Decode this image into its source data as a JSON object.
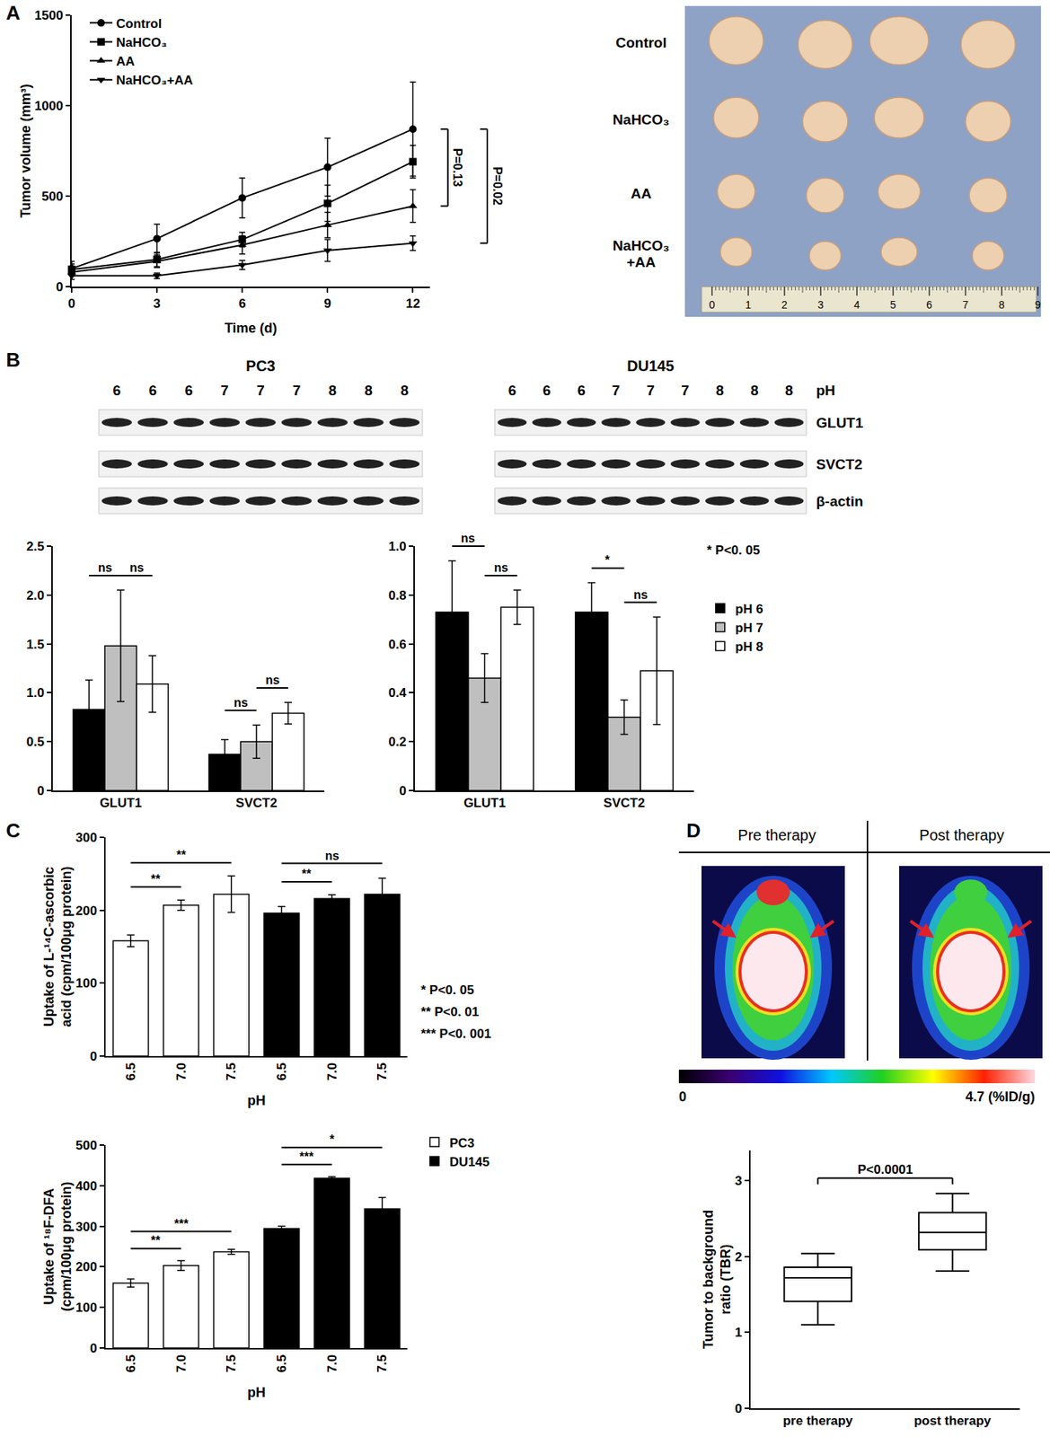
{
  "panels": [
    "A",
    "B",
    "C",
    "D"
  ],
  "photo": {
    "rows": [
      [
        "Control"
      ],
      [
        "NaHCO₃"
      ],
      [
        "AA"
      ],
      [
        "NaHCO₃",
        "+AA"
      ]
    ],
    "ruler_ticks": [
      0,
      1,
      2,
      3,
      4,
      5,
      6,
      7,
      8,
      9
    ]
  },
  "blot": {
    "lane_label": "pH",
    "proteins": [
      "GLUT1",
      "SVCT2",
      "β-actin"
    ],
    "panels": [
      {
        "cell_line": "PC3",
        "lanes": [
          6,
          6,
          6,
          7,
          7,
          7,
          8,
          8,
          8
        ]
      },
      {
        "cell_line": "DU145",
        "lanes": [
          6,
          6,
          6,
          7,
          7,
          7,
          8,
          8,
          8
        ]
      }
    ]
  },
  "pet": {
    "headers": [
      "Pre therapy",
      "Post therapy"
    ],
    "colorbar": {
      "range": [
        0,
        4.7
      ],
      "ticks": [
        {
          "value": 0,
          "label": "0"
        },
        {
          "value": 4.7,
          "label": "4.7 (%ID/g)"
        }
      ]
    }
  },
  "chart_data": [
    {
      "type": "line",
      "x": [
        0,
        3,
        6,
        9,
        12
      ],
      "xlim": [
        0,
        12.6
      ],
      "xticks": [
        0,
        3,
        6,
        9,
        12
      ],
      "ylim": [
        0,
        1500
      ],
      "yticks": [
        0,
        500,
        1000,
        1500
      ],
      "xlabel": "Time (d)",
      "ylabel": "Tumor volume (mm³)",
      "grid": false,
      "legend": "upper left",
      "series": [
        {
          "name": "Control",
          "color": "#000000",
          "marker": "circle",
          "values": [
            100,
            265,
            490,
            660,
            870
          ],
          "errors": [
            40,
            80,
            110,
            160,
            260
          ]
        },
        {
          "name": "NaHCO₃",
          "color": "#000000",
          "marker": "square",
          "values": [
            95,
            150,
            260,
            460,
            690
          ],
          "errors": [
            30,
            40,
            40,
            100,
            90
          ]
        },
        {
          "name": "AA",
          "color": "#000000",
          "marker": "triangle-up",
          "values": [
            80,
            140,
            230,
            340,
            445
          ],
          "errors": [
            20,
            35,
            50,
            70,
            90
          ]
        },
        {
          "name": "NaHCO₃+AA",
          "color": "#000000",
          "marker": "triangle-down",
          "values": [
            60,
            60,
            120,
            200,
            240
          ],
          "errors": [
            20,
            15,
            25,
            60,
            40
          ]
        }
      ],
      "comparisons": [
        {
          "from": "Control",
          "to": "AA",
          "label": "P=0.13"
        },
        {
          "from": "Control",
          "to": "NaHCO₃+AA",
          "label": "P=0.02"
        }
      ]
    },
    {
      "type": "bar",
      "categories": [
        "GLUT1",
        "SVCT2"
      ],
      "ylim": [
        0,
        2.5
      ],
      "yticks": [
        0,
        0.5,
        {
          "value": 1,
          "label": "1.0"
        },
        1.5,
        {
          "value": 2,
          "label": "2.0"
        },
        2.5
      ],
      "grid": false,
      "series": [
        {
          "name": "pH 6",
          "color": "#000000",
          "values": [
            0.83,
            0.37
          ],
          "errors": [
            0.3,
            0.15
          ]
        },
        {
          "name": "pH 7",
          "color": "#bfbfbf",
          "values": [
            1.48,
            0.5
          ],
          "errors": [
            0.57,
            0.17
          ]
        },
        {
          "name": "pH 8",
          "color": "#ffffff",
          "values": [
            1.09,
            0.79
          ],
          "errors": [
            0.29,
            0.11
          ]
        }
      ],
      "comparisons": [
        {
          "category": "GLUT1",
          "from": "pH 6",
          "to": "pH 7",
          "label": "ns"
        },
        {
          "category": "GLUT1",
          "from": "pH 7",
          "to": "pH 8",
          "label": "ns"
        },
        {
          "category": "SVCT2",
          "from": "pH 6",
          "to": "pH 7",
          "label": "ns"
        },
        {
          "category": "SVCT2",
          "from": "pH 7",
          "to": "pH 8",
          "label": "ns"
        }
      ]
    },
    {
      "type": "bar",
      "categories": [
        "GLUT1",
        "SVCT2"
      ],
      "ylim": [
        0,
        1
      ],
      "yticks": [
        0,
        0.2,
        0.4,
        0.6,
        0.8,
        {
          "value": 1,
          "label": "1.0"
        }
      ],
      "grid": false,
      "legend": "right",
      "significance_key": [
        "* P<0. 05"
      ],
      "series": [
        {
          "name": "pH 6",
          "color": "#000000",
          "values": [
            0.73,
            0.73
          ],
          "errors": [
            0.21,
            0.12
          ]
        },
        {
          "name": "pH 7",
          "color": "#bfbfbf",
          "values": [
            0.46,
            0.3
          ],
          "errors": [
            0.1,
            0.07
          ]
        },
        {
          "name": "pH 8",
          "color": "#ffffff",
          "values": [
            0.75,
            0.49
          ],
          "errors": [
            0.07,
            0.22
          ]
        }
      ],
      "comparisons": [
        {
          "category": "GLUT1",
          "from": "pH 6",
          "to": "pH 7",
          "label": "ns"
        },
        {
          "category": "GLUT1",
          "from": "pH 7",
          "to": "pH 8",
          "label": "ns"
        },
        {
          "category": "SVCT2",
          "from": "pH 6",
          "to": "pH 7",
          "label": "*"
        },
        {
          "category": "SVCT2",
          "from": "pH 7",
          "to": "pH 8",
          "label": "ns"
        }
      ]
    },
    {
      "type": "bar",
      "categories": [
        "6.5",
        "7.0",
        "7.5",
        "6.5",
        "7.0",
        "7.5"
      ],
      "xlabel": "pH",
      "ylabel": [
        "Uptake of L-¹⁴C-ascorbic",
        "acid (cpm/100μg protein)"
      ],
      "ylim": [
        0,
        300
      ],
      "yticks": [
        0,
        100,
        200,
        300
      ],
      "grid": false,
      "significance_key": [
        "* P<0. 05",
        "** P<0. 01",
        "*** P<0. 001"
      ],
      "series": [
        {
          "name": "PC3",
          "color": "#ffffff",
          "values": [
            158,
            207,
            222,
            null,
            null,
            null
          ],
          "errors": [
            8,
            7,
            25,
            null,
            null,
            null
          ]
        },
        {
          "name": "DU145",
          "color": "#000000",
          "values": [
            null,
            null,
            null,
            196,
            216,
            222
          ],
          "errors": [
            null,
            null,
            null,
            9,
            5,
            22
          ]
        }
      ],
      "comparisons": [
        {
          "from": 0,
          "to": 1,
          "label": "**"
        },
        {
          "from": 0,
          "to": 2,
          "label": "**"
        },
        {
          "from": 3,
          "to": 4,
          "label": "**"
        },
        {
          "from": 3,
          "to": 5,
          "label": "ns"
        }
      ]
    },
    {
      "type": "bar",
      "categories": [
        "6.5",
        "7.0",
        "7.5",
        "6.5",
        "7.0",
        "7.5"
      ],
      "xlabel": "pH",
      "ylabel": [
        "Uptake of ¹⁸F-DFA",
        "(cpm/100μg protein)"
      ],
      "ylim": [
        0,
        500
      ],
      "yticks": [
        0,
        100,
        200,
        300,
        400,
        500
      ],
      "grid": false,
      "legend": "upper right",
      "series": [
        {
          "name": "PC3",
          "color": "#ffffff",
          "values": [
            160,
            203,
            237,
            null,
            null,
            null
          ],
          "errors": [
            10,
            12,
            6,
            null,
            null,
            null
          ]
        },
        {
          "name": "DU145",
          "color": "#000000",
          "values": [
            null,
            null,
            null,
            294,
            418,
            343
          ],
          "errors": [
            null,
            null,
            null,
            6,
            4,
            28
          ]
        }
      ],
      "comparisons": [
        {
          "from": 0,
          "to": 1,
          "label": "**"
        },
        {
          "from": 0,
          "to": 2,
          "label": "***"
        },
        {
          "from": 3,
          "to": 4,
          "label": "***"
        },
        {
          "from": 3,
          "to": 5,
          "label": "*"
        }
      ]
    },
    {
      "type": "box",
      "categories": [
        "pre therapy",
        "post therapy"
      ],
      "ylabel": [
        "Tumor to background",
        "ratio (TBR)"
      ],
      "ylim": [
        0,
        3.4
      ],
      "yticks": [
        0,
        1,
        2,
        3
      ],
      "grid": false,
      "color": "#000000",
      "min": [
        1.1,
        1.81
      ],
      "q1": [
        1.41,
        2.09
      ],
      "median": [
        1.72,
        2.32
      ],
      "q3": [
        1.86,
        2.58
      ],
      "max": [
        2.04,
        2.83
      ],
      "comparisons": [
        {
          "from": 0,
          "to": 1,
          "label": "P<0.0001"
        }
      ]
    }
  ]
}
